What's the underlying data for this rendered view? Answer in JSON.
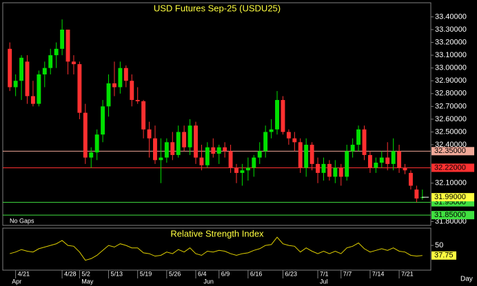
{
  "chart_data": [
    {
      "type": "candlestick",
      "title": "USD Futures Sep-25 (USDU25)",
      "note": "No Gaps",
      "period": "Day",
      "up_color": "#00e000",
      "down_color": "#ff3030",
      "categories": [
        null,
        "4/21",
        null,
        null,
        null,
        null,
        null,
        null,
        null,
        "4/28",
        null,
        null,
        "5/2",
        null,
        null,
        null,
        null,
        "5/13",
        null,
        null,
        null,
        null,
        "5/19",
        null,
        null,
        null,
        null,
        "5/26",
        null,
        null,
        null,
        null,
        "6/4",
        null,
        null,
        null,
        "6/9",
        null,
        null,
        null,
        null,
        "6/16",
        null,
        null,
        null,
        null,
        null,
        "6/23",
        null,
        null,
        null,
        null,
        null,
        "7/1",
        null,
        null,
        null,
        "7/7",
        null,
        null,
        null,
        null,
        "7/14",
        null,
        null,
        null,
        null,
        "7/21",
        null,
        null,
        null,
        null
      ],
      "months": [
        "Apr",
        null,
        null,
        null,
        null,
        null,
        null,
        null,
        null,
        null,
        null,
        null,
        "May",
        null,
        null,
        null,
        null,
        null,
        null,
        null,
        null,
        null,
        null,
        null,
        null,
        null,
        null,
        null,
        null,
        null,
        null,
        null,
        null,
        "Jun",
        null,
        null,
        null,
        null,
        null,
        null,
        null,
        null,
        null,
        null,
        null,
        null,
        null,
        null,
        null,
        null,
        null,
        null,
        null,
        "Jul",
        null,
        null,
        null,
        null,
        null,
        null,
        null,
        null,
        null,
        null,
        null,
        null,
        null,
        null,
        null,
        null,
        null,
        null
      ],
      "open": [
        33.15,
        32.85,
        32.9,
        33.05,
        32.78,
        32.72,
        32.95,
        33.0,
        33.1,
        33.15,
        33.3,
        33.05,
        33.03,
        32.65,
        32.3,
        32.34,
        32.48,
        32.7,
        32.88,
        32.85,
        33.0,
        32.9,
        32.75,
        32.74,
        32.52,
        32.45,
        32.28,
        32.3,
        32.42,
        32.32,
        32.5,
        32.38,
        32.55,
        32.3,
        32.24,
        32.38,
        32.33,
        32.38,
        32.35,
        32.22,
        32.18,
        32.2,
        32.22,
        32.3,
        32.35,
        32.5,
        32.52,
        32.75,
        32.5,
        32.45,
        32.42,
        32.22,
        32.4,
        32.25,
        32.18,
        32.25,
        32.15,
        32.22,
        32.15,
        32.35,
        32.4,
        32.52,
        32.32,
        32.22,
        32.26,
        32.3,
        32.25,
        32.35,
        32.22,
        32.18,
        32.05,
        31.99
      ],
      "high": [
        33.2,
        32.95,
        33.1,
        33.1,
        32.9,
        32.98,
        33.05,
        33.15,
        33.2,
        33.38,
        33.3,
        33.1,
        33.05,
        32.72,
        32.38,
        32.52,
        32.75,
        32.95,
        33.05,
        33.05,
        33.02,
        32.95,
        32.85,
        32.75,
        32.58,
        32.55,
        32.45,
        32.45,
        32.5,
        32.55,
        32.55,
        32.6,
        32.58,
        32.4,
        32.42,
        32.45,
        32.4,
        32.42,
        32.4,
        32.25,
        32.25,
        32.3,
        32.32,
        32.42,
        32.55,
        32.6,
        32.82,
        32.78,
        32.52,
        32.5,
        32.45,
        32.45,
        32.42,
        32.3,
        32.3,
        32.28,
        32.28,
        32.25,
        32.4,
        32.45,
        32.55,
        32.55,
        32.35,
        32.3,
        32.35,
        32.42,
        32.45,
        32.4,
        32.25,
        32.2,
        32.08,
        32.05
      ],
      "low": [
        32.82,
        32.78,
        32.75,
        32.72,
        32.7,
        32.7,
        32.85,
        32.95,
        33.0,
        33.1,
        32.95,
        32.95,
        32.6,
        32.25,
        32.22,
        32.28,
        32.42,
        32.62,
        32.78,
        32.8,
        32.85,
        32.7,
        32.72,
        32.45,
        32.3,
        32.25,
        32.1,
        32.26,
        32.28,
        32.3,
        32.35,
        32.32,
        32.25,
        32.2,
        32.22,
        32.3,
        32.25,
        32.3,
        32.18,
        32.1,
        32.08,
        32.12,
        32.15,
        32.25,
        32.3,
        32.45,
        32.48,
        32.48,
        32.4,
        32.35,
        32.18,
        32.15,
        32.2,
        32.1,
        32.12,
        32.12,
        32.1,
        32.08,
        32.12,
        32.3,
        32.35,
        32.28,
        32.18,
        32.18,
        32.22,
        32.2,
        32.2,
        32.18,
        32.17,
        32.05,
        31.95,
        31.97
      ],
      "close": [
        32.85,
        32.9,
        33.08,
        32.78,
        32.72,
        32.95,
        33.0,
        33.1,
        33.15,
        33.3,
        33.05,
        33.03,
        32.65,
        32.3,
        32.34,
        32.48,
        32.7,
        32.88,
        32.85,
        33.0,
        32.9,
        32.75,
        32.74,
        32.52,
        32.45,
        32.28,
        32.3,
        32.42,
        32.32,
        32.5,
        32.38,
        32.55,
        32.3,
        32.24,
        32.38,
        32.33,
        32.38,
        32.35,
        32.22,
        32.18,
        32.2,
        32.22,
        32.3,
        32.35,
        32.5,
        32.52,
        32.75,
        32.5,
        32.45,
        32.42,
        32.22,
        32.4,
        32.25,
        32.18,
        32.25,
        32.15,
        32.22,
        32.15,
        32.35,
        32.4,
        32.52,
        32.32,
        32.22,
        32.26,
        32.3,
        32.25,
        32.35,
        32.22,
        32.2,
        32.08,
        31.98,
        31.99
      ],
      "ylim": [
        31.77,
        33.51
      ],
      "yticks": [
        {
          "value": 33.4,
          "label": "33.40000"
        },
        {
          "value": 33.3,
          "label": "33.30000"
        },
        {
          "value": 33.2,
          "label": "33.20000"
        },
        {
          "value": 33.1,
          "label": "33.10000"
        },
        {
          "value": 33.0,
          "label": "33.00000"
        },
        {
          "value": 32.9,
          "label": "32.90000"
        },
        {
          "value": 32.8,
          "label": "32.80000"
        },
        {
          "value": 32.7,
          "label": "32.70000"
        },
        {
          "value": 32.6,
          "label": "32.60000"
        },
        {
          "value": 32.5,
          "label": "32.50000"
        },
        {
          "value": 32.4,
          "label": "32.40000"
        },
        {
          "value": 32.1,
          "label": "32.10000"
        },
        {
          "value": 31.8,
          "label": "31.80000"
        }
      ],
      "levels": [
        {
          "value": 32.35,
          "label": "32.35000",
          "color": "#f0a898"
        },
        {
          "value": 32.22,
          "label": "32.22000",
          "color": "#ff3030"
        },
        {
          "value": 31.95,
          "label": "31.95000",
          "color": "#40e040"
        },
        {
          "value": 31.85,
          "label": "31.85000",
          "color": "#40e040"
        }
      ],
      "last": {
        "value": 31.99,
        "label": "31.99000",
        "color": "#ffff40"
      }
    },
    {
      "type": "line",
      "title": "Relative Strength Index",
      "color": "#e0d000",
      "values": [
        40,
        42,
        45,
        43,
        42,
        46,
        48,
        50,
        52,
        56,
        50,
        49,
        42,
        32,
        34,
        38,
        44,
        50,
        48,
        52,
        50,
        47,
        47,
        41,
        40,
        37,
        38,
        42,
        40,
        45,
        42,
        47,
        40,
        38,
        43,
        42,
        44,
        43,
        40,
        38,
        40,
        41,
        44,
        46,
        50,
        51,
        60,
        52,
        50,
        49,
        42,
        47,
        43,
        40,
        43,
        40,
        43,
        40,
        47,
        49,
        53,
        46,
        42,
        44,
        46,
        44,
        47,
        43,
        42,
        38,
        37,
        37.75
      ],
      "ylim": [
        20,
        71
      ],
      "yticks": [
        50
      ],
      "last": 37.75,
      "last_color": "#ffff40"
    }
  ]
}
